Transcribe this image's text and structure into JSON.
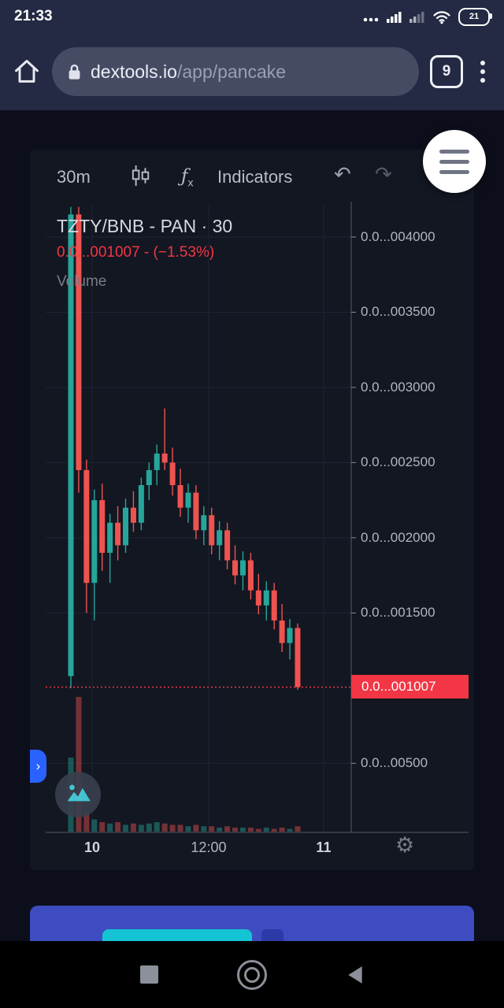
{
  "status_bar": {
    "time": "21:33",
    "battery_percent": "21"
  },
  "browser": {
    "url_domain": "dextools.io",
    "url_path": "/app/pancake",
    "tab_count": "9"
  },
  "chart_toolbar": {
    "interval": "30m",
    "fx": "ƒ",
    "fx_sub": "x",
    "indicators_label": "Indicators",
    "undo_glyph": "↶",
    "redo_glyph": "↷"
  },
  "chart": {
    "title": "TZTY/BNB - PAN · 30",
    "price_line": "0.0...001007 - (−1.53%)",
    "volume_label": "Volume",
    "price_badge": "0.0...001007",
    "settings_glyph": "⚙",
    "expand_glyph": "›"
  },
  "chart_data": {
    "type": "candlestick",
    "pair": "TZTY/BNB",
    "exchange": "PAN",
    "interval_minutes": 30,
    "price_unit_prefix": "0.0...00",
    "current_price": 1007,
    "change_percent": -1.53,
    "y_axis": {
      "labels": [
        {
          "text": "0.0...004000",
          "value": 4000
        },
        {
          "text": "0.0...003500",
          "value": 3500
        },
        {
          "text": "0.0...003000",
          "value": 3000
        },
        {
          "text": "0.0...002500",
          "value": 2500
        },
        {
          "text": "0.0...002000",
          "value": 2000
        },
        {
          "text": "0.0...001500",
          "value": 1500
        },
        {
          "text": "0.0...00500",
          "value": 500
        }
      ],
      "gridlines": [
        4000,
        3500,
        3000,
        2500,
        2000,
        1500,
        500
      ]
    },
    "x_axis": {
      "labels": [
        {
          "text": "10",
          "i": 2.72,
          "em": true
        },
        {
          "text": "12:00",
          "i": 17.62,
          "em": false
        },
        {
          "text": "11",
          "i": 32.32,
          "em": true
        }
      ]
    },
    "candles": [
      [
        1080,
        4200,
        1000,
        4150
      ],
      [
        4150,
        4200,
        2300,
        2450
      ],
      [
        2450,
        2520,
        1500,
        1700
      ],
      [
        1700,
        2320,
        1450,
        2250
      ],
      [
        2250,
        2360,
        1780,
        1900
      ],
      [
        1900,
        2160,
        1700,
        2100
      ],
      [
        2100,
        2210,
        1850,
        1950
      ],
      [
        1950,
        2260,
        1900,
        2200
      ],
      [
        2200,
        2310,
        2040,
        2100
      ],
      [
        2100,
        2400,
        2050,
        2350
      ],
      [
        2350,
        2500,
        2250,
        2450
      ],
      [
        2450,
        2620,
        2350,
        2560
      ],
      [
        2560,
        2860,
        2450,
        2500
      ],
      [
        2500,
        2600,
        2280,
        2350
      ],
      [
        2350,
        2460,
        2140,
        2200
      ],
      [
        2200,
        2360,
        2100,
        2300
      ],
      [
        2300,
        2350,
        1990,
        2050
      ],
      [
        2050,
        2210,
        1950,
        2150
      ],
      [
        2150,
        2200,
        1890,
        1950
      ],
      [
        1950,
        2110,
        1850,
        2050
      ],
      [
        2050,
        2100,
        1790,
        1850
      ],
      [
        1850,
        1950,
        1690,
        1750
      ],
      [
        1750,
        1910,
        1650,
        1850
      ],
      [
        1850,
        1900,
        1590,
        1650
      ],
      [
        1650,
        1760,
        1490,
        1550
      ],
      [
        1550,
        1710,
        1450,
        1650
      ],
      [
        1650,
        1700,
        1390,
        1450
      ],
      [
        1450,
        1560,
        1240,
        1300
      ],
      [
        1300,
        1460,
        1190,
        1400
      ],
      [
        1400,
        1430,
        990,
        1007
      ]
    ],
    "volume": [
      55,
      100,
      14,
      9,
      7,
      6,
      7,
      5,
      6,
      5,
      6,
      7,
      6,
      5,
      5,
      4,
      5,
      4,
      4,
      3,
      4,
      3,
      3,
      3,
      2,
      3,
      2,
      3,
      2,
      4
    ]
  },
  "colors": {
    "up": "#26a69a",
    "down": "#ef5350",
    "badge": "#f23645",
    "grid": "#1e2433",
    "axis": "#555a66",
    "accent_blue": "#2962ff",
    "cyan_button": "#14c4d4",
    "bottom_card": "#3d4cc0"
  }
}
